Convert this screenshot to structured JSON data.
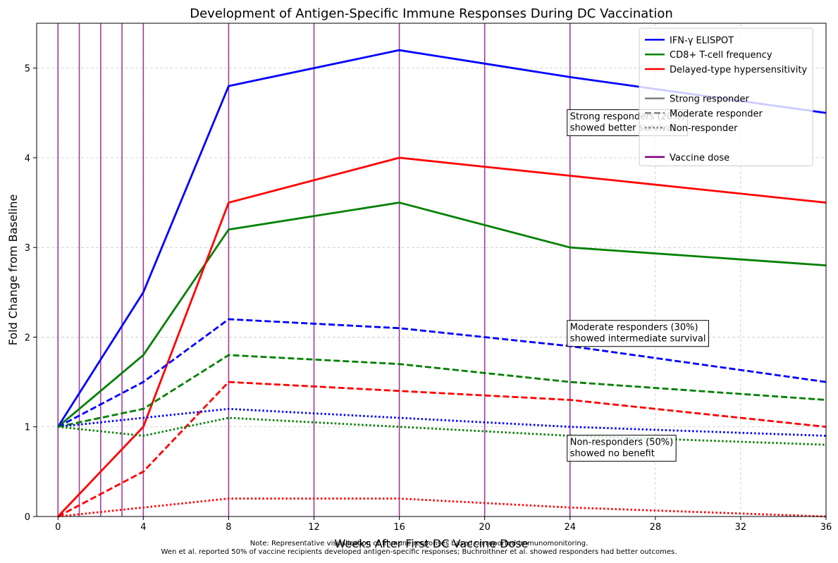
{
  "chart_data": {
    "type": "line",
    "title": "Development of Antigen-Specific Immune Responses During DC Vaccination",
    "xlabel": "Weeks After First DC Vaccine Dose",
    "ylabel": "Fold Change from Baseline",
    "xlim": [
      -1,
      36
    ],
    "ylim": [
      0,
      5.5
    ],
    "xticks": [
      0,
      4,
      8,
      12,
      16,
      20,
      24,
      28,
      32,
      36
    ],
    "yticks": [
      0,
      1,
      2,
      3,
      4,
      5
    ],
    "grid": true,
    "vaccine_doses": [
      0,
      1,
      2,
      3,
      4,
      8,
      12,
      16,
      20,
      24
    ],
    "x": [
      0,
      4,
      8,
      16,
      24,
      36
    ],
    "series": [
      {
        "name": "IFN-γ ELISPOT",
        "group": "Strong responder",
        "color": "#0000ff",
        "style": "solid",
        "values": [
          1,
          2.5,
          4.8,
          5.2,
          4.9,
          4.5
        ]
      },
      {
        "name": "CD8+ T-cell frequency",
        "group": "Strong responder",
        "color": "#008000",
        "style": "solid",
        "values": [
          1,
          1.8,
          3.2,
          3.5,
          3.0,
          2.8
        ]
      },
      {
        "name": "Delayed-type hypersensitivity",
        "group": "Strong responder",
        "color": "#ff0000",
        "style": "solid",
        "values": [
          0,
          1.0,
          3.5,
          4.0,
          3.8,
          3.5
        ]
      },
      {
        "name": "IFN-γ ELISPOT",
        "group": "Moderate responder",
        "color": "#0000ff",
        "style": "dashed",
        "values": [
          1,
          1.5,
          2.2,
          2.1,
          1.9,
          1.5
        ]
      },
      {
        "name": "CD8+ T-cell frequency",
        "group": "Moderate responder",
        "color": "#008000",
        "style": "dashed",
        "values": [
          1,
          1.2,
          1.8,
          1.7,
          1.5,
          1.3
        ]
      },
      {
        "name": "Delayed-type hypersensitivity",
        "group": "Moderate responder",
        "color": "#ff0000",
        "style": "dashed",
        "values": [
          0,
          0.5,
          1.5,
          1.4,
          1.3,
          1.0
        ]
      },
      {
        "name": "IFN-γ ELISPOT",
        "group": "Non-responder",
        "color": "#0000ff",
        "style": "dotted",
        "values": [
          1,
          1.1,
          1.2,
          1.1,
          1.0,
          0.9
        ]
      },
      {
        "name": "CD8+ T-cell frequency",
        "group": "Non-responder",
        "color": "#008000",
        "style": "dotted",
        "values": [
          1,
          0.9,
          1.1,
          1.0,
          0.9,
          0.8
        ]
      },
      {
        "name": "Delayed-type hypersensitivity",
        "group": "Non-responder",
        "color": "#ff0000",
        "style": "dotted",
        "values": [
          0,
          0.1,
          0.2,
          0.2,
          0.1,
          0.0
        ]
      }
    ],
    "legend": {
      "placement": "top-right",
      "entries": [
        {
          "label": "IFN-γ ELISPOT",
          "color": "#0000ff",
          "style": "solid"
        },
        {
          "label": "CD8+ T-cell frequency",
          "color": "#008000",
          "style": "solid"
        },
        {
          "label": "Delayed-type hypersensitivity",
          "color": "#ff0000",
          "style": "solid"
        },
        {
          "label": "",
          "color": "",
          "style": "blank"
        },
        {
          "label": "Strong responder",
          "color": "#808080",
          "style": "solid"
        },
        {
          "label": "Moderate responder",
          "color": "#808080",
          "style": "dashed"
        },
        {
          "label": "Non-responder",
          "color": "#808080",
          "style": "dotted"
        },
        {
          "label": "",
          "color": "",
          "style": "blank"
        },
        {
          "label": "Vaccine dose",
          "color": "#800080",
          "style": "solid"
        }
      ]
    },
    "annotations": [
      {
        "lines": [
          "Strong responders (20%)",
          "showed better survival"
        ],
        "x": 24,
        "y": 4.45
      },
      {
        "lines": [
          "Moderate responders (30%)",
          "showed intermediate survival"
        ],
        "x": 24,
        "y": 2.1
      },
      {
        "lines": [
          "Non-responders (50%)",
          "showed no benefit"
        ],
        "x": 24,
        "y": 0.82
      }
    ]
  },
  "notes": {
    "line1": "Note: Representative visualization of immune responses based on reported immunomonitoring.",
    "line2": "Wen et al. reported 50% of vaccine recipients developed antigen-specific responses; Buchroithner et al. showed responders had better outcomes."
  }
}
